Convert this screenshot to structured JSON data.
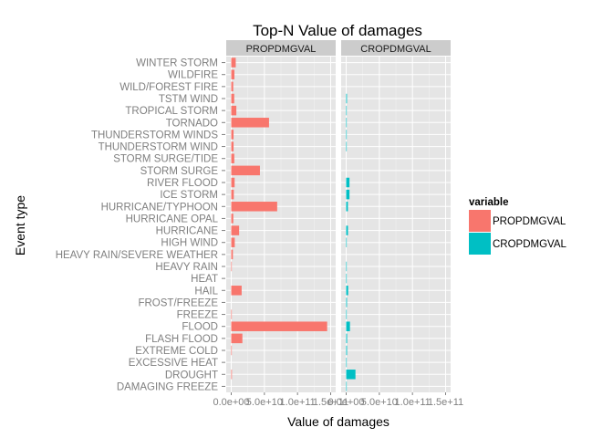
{
  "chart_data": {
    "type": "bar",
    "orientation": "horizontal",
    "title": "Top-N Value of damages",
    "xlabel": "Value of damages",
    "ylabel": "Event type",
    "xlim": [
      0,
      150000000000
    ],
    "x_ticks": [
      0,
      50000000000,
      100000000000,
      150000000000
    ],
    "x_tick_labels": [
      "0.0e+00",
      "5.0e+10",
      "1.0e+11",
      "1.5e+11"
    ],
    "grid": true,
    "legend_position": "right",
    "legend_title": "variable",
    "categories": [
      "WINTER STORM",
      "WILDFIRE",
      "WILD/FOREST FIRE",
      "TSTM WIND",
      "TROPICAL STORM",
      "TORNADO",
      "THUNDERSTORM WINDS",
      "THUNDERSTORM WIND",
      "STORM SURGE/TIDE",
      "STORM SURGE",
      "RIVER FLOOD",
      "ICE STORM",
      "HURRICANE/TYPHOON",
      "HURRICANE OPAL",
      "HURRICANE",
      "HIGH WIND",
      "HEAVY RAIN/SEVERE WEATHER",
      "HEAVY RAIN",
      "HEAT",
      "HAIL",
      "FROST/FREEZE",
      "FREEZE",
      "FLOOD",
      "FLASH FLOOD",
      "EXTREME COLD",
      "EXCESSIVE HEAT",
      "DROUGHT",
      "DAMAGING FREEZE"
    ],
    "series": [
      {
        "name": "PROPDMGVAL",
        "color": "#F8766D",
        "values": [
          6800000000,
          4800000000,
          3000000000,
          4500000000,
          7700000000,
          57000000000,
          3500000000,
          3500000000,
          4600000000,
          43300000000,
          5100000000,
          3900000000,
          69300000000,
          3100000000,
          11900000000,
          5300000000,
          2500000000,
          700000000,
          0,
          15700000000,
          0,
          200000000,
          144700000000,
          16800000000,
          100000000,
          0,
          1000000000,
          0
        ]
      },
      {
        "name": "CROPDMGVAL",
        "color": "#00BFC4",
        "values": [
          0,
          0,
          0,
          1200000000,
          700000000,
          400000000,
          200000000,
          400000000,
          0,
          0,
          5000000000,
          5000000000,
          2600000000,
          0,
          2700000000,
          700000000,
          0,
          700000000,
          400000000,
          3000000000,
          1200000000,
          400000000,
          5700000000,
          1400000000,
          1300000000,
          500000000,
          14000000000,
          300000000
        ]
      }
    ]
  }
}
